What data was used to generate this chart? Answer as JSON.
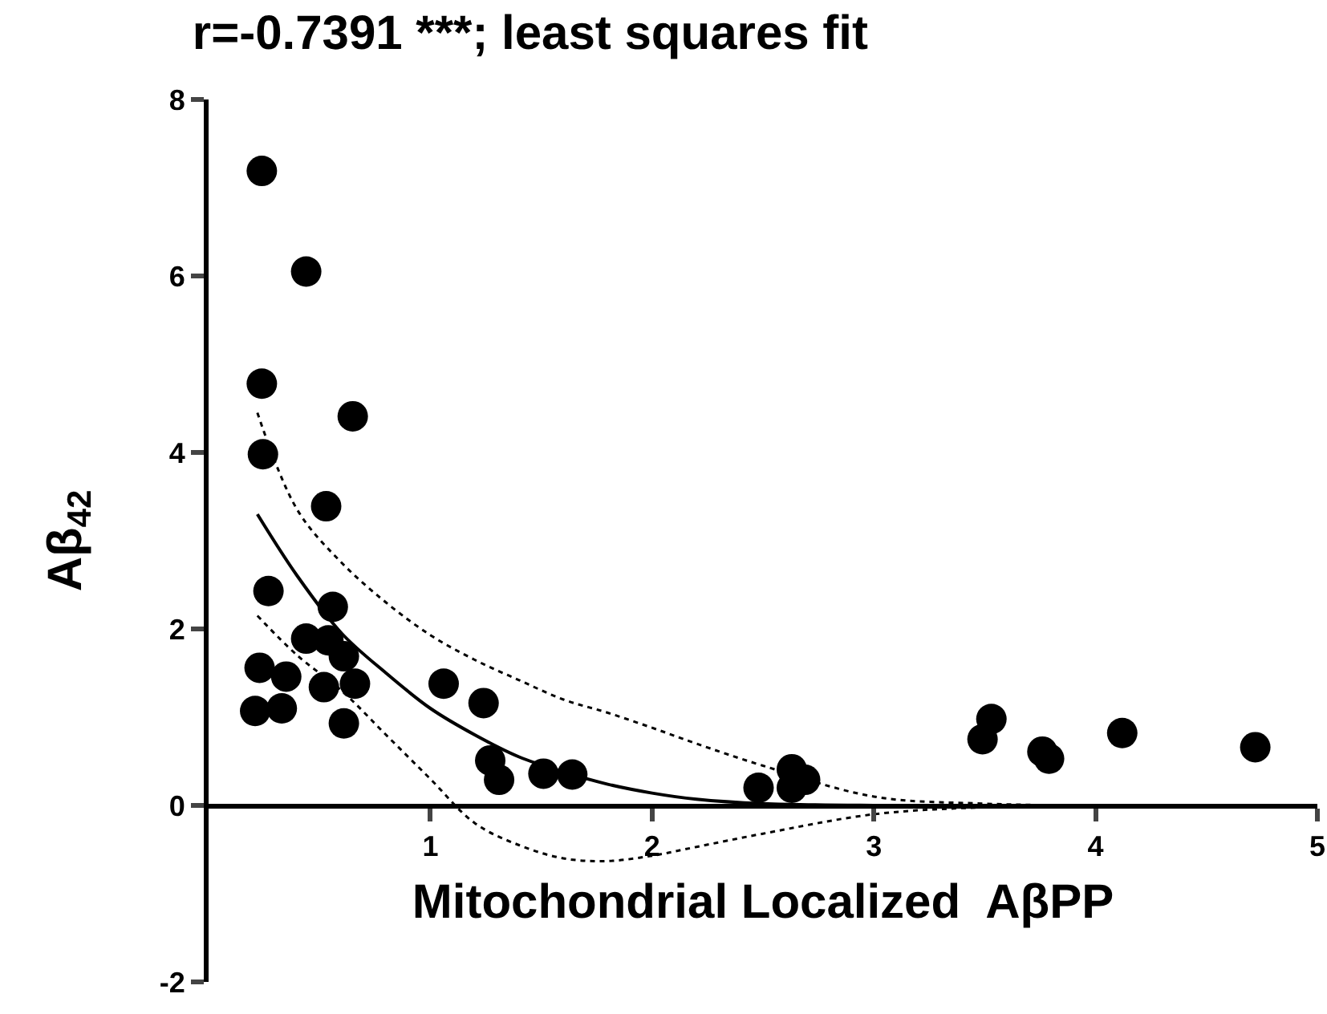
{
  "chart_data": {
    "type": "scatter",
    "title": "r=-0.7391 ***; least squares fit",
    "xlabel": "Mitochondrial Localized  AβPP",
    "ylabel": "Aβ$_{42}$",
    "xlim": [
      0,
      5
    ],
    "xticks": [
      1,
      2,
      3,
      4,
      5
    ],
    "ylim": [
      -2,
      8
    ],
    "yticks": [
      -2,
      0,
      2,
      4,
      6,
      8
    ],
    "grid": false,
    "series": [
      {
        "marker": "circle",
        "color": "#000000",
        "x": [
          0.24,
          0.44,
          0.24,
          0.65,
          0.245,
          0.53,
          0.27,
          0.56,
          0.44,
          0.54,
          0.61,
          0.23,
          0.35,
          0.52,
          0.66,
          0.21,
          0.33,
          0.61,
          1.06,
          1.24,
          1.27,
          1.31,
          1.51,
          1.64,
          2.48,
          2.63,
          2.69,
          2.63,
          3.53,
          3.49,
          3.76,
          3.79,
          4.12,
          4.72
        ],
        "values": [
          7.19,
          6.05,
          4.78,
          4.41,
          3.98,
          3.39,
          2.43,
          2.25,
          1.89,
          1.87,
          1.69,
          1.56,
          1.46,
          1.34,
          1.38,
          1.07,
          1.1,
          0.93,
          1.38,
          1.16,
          0.51,
          0.29,
          0.36,
          0.35,
          0.2,
          0.41,
          0.29,
          0.2,
          0.98,
          0.75,
          0.61,
          0.53,
          0.82,
          0.66
        ]
      },
      {
        "type": "line",
        "marker": "none",
        "line_style": "solid",
        "color": "#000000",
        "x": [
          0.22,
          0.4,
          0.6,
          0.8,
          1.0,
          1.2,
          1.4,
          1.6,
          1.8,
          2.0,
          2.2,
          2.5,
          3.0,
          3.5,
          4.0,
          4.75
        ],
        "values": [
          3.3,
          2.6,
          1.95,
          1.5,
          1.1,
          0.8,
          0.55,
          0.38,
          0.24,
          0.14,
          0.07,
          0.02,
          0,
          0,
          0,
          0
        ]
      },
      {
        "type": "line",
        "marker": "none",
        "line_style": "dotted",
        "color": "#000000",
        "x": [
          0.22,
          0.4,
          0.6,
          0.8,
          1.0,
          1.2,
          1.4,
          1.6,
          1.8,
          2.0,
          2.2,
          2.5,
          3.0,
          3.5,
          4.0,
          4.75
        ],
        "values": [
          4.45,
          3.35,
          2.75,
          2.3,
          1.93,
          1.65,
          1.42,
          1.2,
          1.05,
          0.88,
          0.7,
          0.45,
          0.1,
          0.02,
          0,
          0
        ]
      },
      {
        "type": "line",
        "marker": "none",
        "line_style": "dotted",
        "color": "#000000",
        "x": [
          0.22,
          0.4,
          0.6,
          0.8,
          1.0,
          1.2,
          1.4,
          1.6,
          1.8,
          2.0,
          2.2,
          2.5,
          3.0,
          3.5,
          4.0,
          4.75
        ],
        "values": [
          2.15,
          1.7,
          1.3,
          0.8,
          0.3,
          -0.2,
          -0.45,
          -0.6,
          -0.63,
          -0.57,
          -0.47,
          -0.32,
          -0.1,
          -0.02,
          0,
          0
        ]
      }
    ]
  }
}
